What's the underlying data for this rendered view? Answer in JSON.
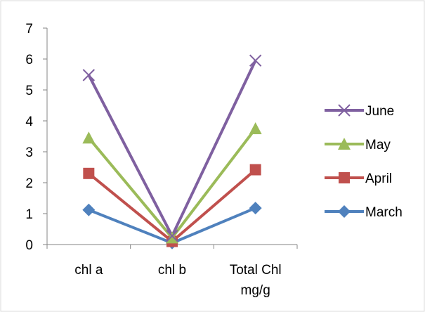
{
  "chart_data": {
    "type": "line",
    "categories": [
      [
        "chl a"
      ],
      [
        "chl b"
      ],
      [
        "Total Chl",
        "mg/g"
      ]
    ],
    "ylim": [
      0,
      7
    ],
    "yticks": [
      0,
      1,
      2,
      3,
      4,
      5,
      6,
      7
    ],
    "grid": false,
    "legend": "right",
    "series": [
      {
        "name": "June",
        "values": [
          5.48,
          0.28,
          5.95
        ],
        "color": "#7f60a0",
        "marker": "x"
      },
      {
        "name": "May",
        "values": [
          3.45,
          0.22,
          3.75
        ],
        "color": "#9bbb59",
        "marker": "triangle"
      },
      {
        "name": "April",
        "values": [
          2.3,
          0.1,
          2.42
        ],
        "color": "#c0504d",
        "marker": "square"
      },
      {
        "name": "March",
        "values": [
          1.12,
          0.05,
          1.18
        ],
        "color": "#4f81bd",
        "marker": "diamond"
      }
    ]
  }
}
